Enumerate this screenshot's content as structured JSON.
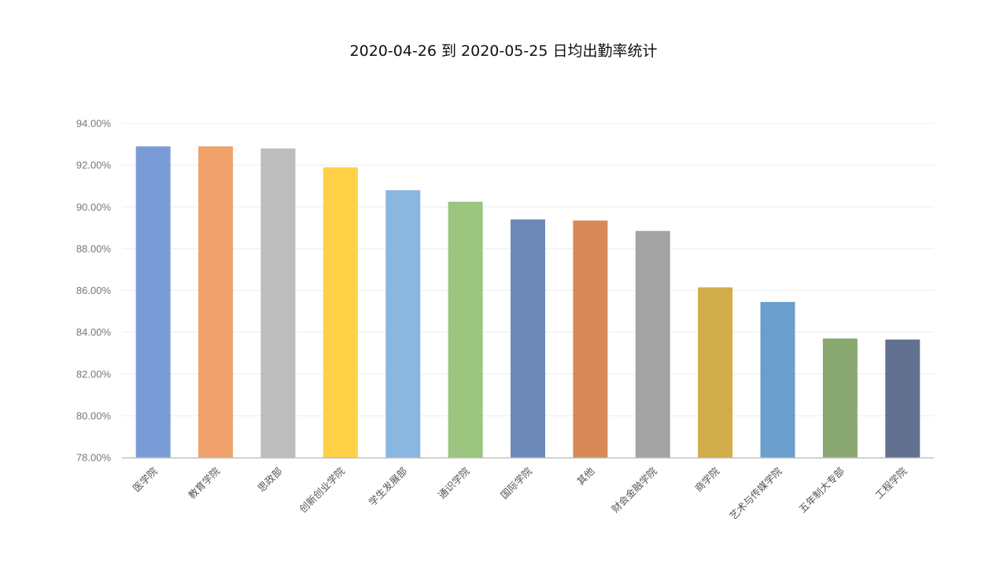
{
  "chart_data": {
    "type": "bar",
    "title": "2020-04-26 到 2020-05-25 日均出勤率统计",
    "xlabel": "",
    "ylabel": "",
    "ylim": [
      78,
      94
    ],
    "y_ticks": [
      "78.00%",
      "80.00%",
      "82.00%",
      "84.00%",
      "86.00%",
      "88.00%",
      "90.00%",
      "92.00%",
      "94.00%"
    ],
    "y_tick_values": [
      78,
      80,
      82,
      84,
      86,
      88,
      90,
      92,
      94
    ],
    "grid": true,
    "legend": "none",
    "categories": [
      "医学院",
      "教育学院",
      "思政部",
      "创新创业学院",
      "学生发展部",
      "通识学院",
      "国际学院",
      "其他",
      "财会金融学院",
      "商学院",
      "艺术与传媒学院",
      "五年制大专部",
      "工程学院"
    ],
    "values": [
      92.9,
      92.9,
      92.8,
      91.9,
      90.8,
      90.25,
      89.4,
      89.35,
      88.85,
      86.15,
      85.45,
      83.7,
      83.65
    ],
    "colors": [
      "#7a9cd6",
      "#f0a06a",
      "#bdbdbd",
      "#ffd147",
      "#8ab7e0",
      "#9bc47e",
      "#6b88b6",
      "#d78a57",
      "#a3a3a3",
      "#d1ae49",
      "#6b9ecc",
      "#89a872",
      "#61718f"
    ]
  }
}
